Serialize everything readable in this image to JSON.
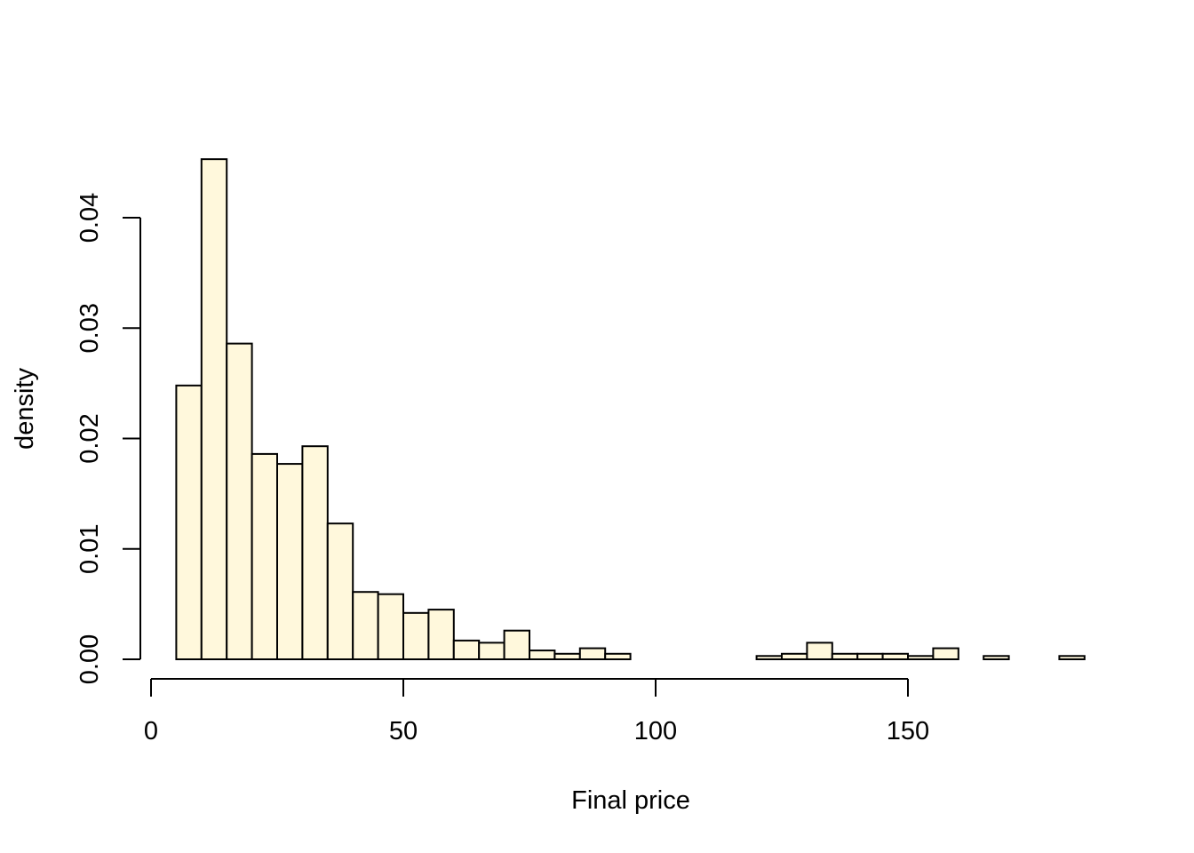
{
  "chart_data": {
    "type": "histogram",
    "xlabel": "Final price",
    "ylabel": "density",
    "bar_color": "#FFF8DC",
    "bin_width": 5,
    "bins": [
      {
        "x0": 5,
        "x1": 10,
        "density": 0.0248
      },
      {
        "x0": 10,
        "x1": 15,
        "density": 0.0453
      },
      {
        "x0": 15,
        "x1": 20,
        "density": 0.0286
      },
      {
        "x0": 20,
        "x1": 25,
        "density": 0.0186
      },
      {
        "x0": 25,
        "x1": 30,
        "density": 0.0177
      },
      {
        "x0": 30,
        "x1": 35,
        "density": 0.0193
      },
      {
        "x0": 35,
        "x1": 40,
        "density": 0.0123
      },
      {
        "x0": 40,
        "x1": 45,
        "density": 0.0061
      },
      {
        "x0": 45,
        "x1": 50,
        "density": 0.0059
      },
      {
        "x0": 50,
        "x1": 55,
        "density": 0.0042
      },
      {
        "x0": 55,
        "x1": 60,
        "density": 0.0045
      },
      {
        "x0": 60,
        "x1": 65,
        "density": 0.0017
      },
      {
        "x0": 65,
        "x1": 70,
        "density": 0.0015
      },
      {
        "x0": 70,
        "x1": 75,
        "density": 0.0026
      },
      {
        "x0": 75,
        "x1": 80,
        "density": 0.0008
      },
      {
        "x0": 80,
        "x1": 85,
        "density": 0.0005
      },
      {
        "x0": 85,
        "x1": 90,
        "density": 0.001
      },
      {
        "x0": 90,
        "x1": 95,
        "density": 0.0005
      },
      {
        "x0": 95,
        "x1": 100,
        "density": 0
      },
      {
        "x0": 100,
        "x1": 105,
        "density": 0
      },
      {
        "x0": 105,
        "x1": 110,
        "density": 0
      },
      {
        "x0": 110,
        "x1": 115,
        "density": 0
      },
      {
        "x0": 115,
        "x1": 120,
        "density": 0
      },
      {
        "x0": 120,
        "x1": 125,
        "density": 0.0003
      },
      {
        "x0": 125,
        "x1": 130,
        "density": 0.0005
      },
      {
        "x0": 130,
        "x1": 135,
        "density": 0.0015
      },
      {
        "x0": 135,
        "x1": 140,
        "density": 0.0005
      },
      {
        "x0": 140,
        "x1": 145,
        "density": 0.0005
      },
      {
        "x0": 145,
        "x1": 150,
        "density": 0.0005
      },
      {
        "x0": 150,
        "x1": 155,
        "density": 0.0003
      },
      {
        "x0": 155,
        "x1": 160,
        "density": 0.001
      },
      {
        "x0": 160,
        "x1": 165,
        "density": 0
      },
      {
        "x0": 165,
        "x1": 170,
        "density": 0.0003
      },
      {
        "x0": 170,
        "x1": 175,
        "density": 0
      },
      {
        "x0": 175,
        "x1": 180,
        "density": 0
      },
      {
        "x0": 180,
        "x1": 185,
        "density": 0.0003
      }
    ],
    "x_axis": {
      "ticks": [
        0,
        50,
        100,
        150
      ],
      "tick_labels": [
        "0",
        "50",
        "100",
        "150"
      ],
      "range": [
        0,
        150
      ]
    },
    "y_axis": {
      "ticks": [
        0,
        0.01,
        0.02,
        0.03,
        0.04
      ],
      "tick_labels": [
        "0.00",
        "0.01",
        "0.02",
        "0.03",
        "0.04"
      ],
      "range": [
        0,
        0.04
      ]
    },
    "grid": false,
    "legend": "none"
  }
}
